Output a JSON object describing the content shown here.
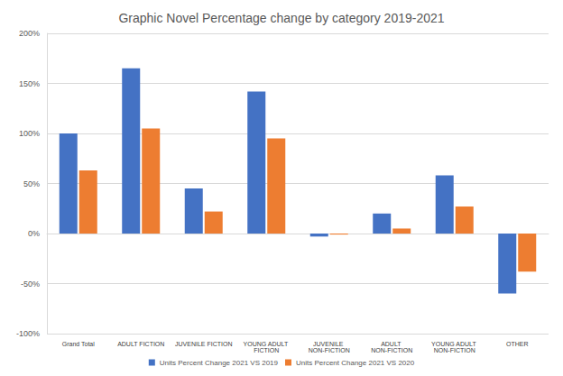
{
  "chart_data": {
    "type": "bar",
    "title": "Graphic Novel Percentage change by category 2019-2021",
    "categories": [
      "Grand Total",
      "ADULT FICTION",
      "JUVENILE FICTION",
      "YOUNG ADULT FICTION",
      "JUVENILE NON-FICTION",
      "ADULT NON-FICTION",
      "YOUNG ADULT NON-FICTION",
      "OTHER"
    ],
    "series": [
      {
        "name": "Units Percent Change 2021 VS 2019",
        "color": "#4472c4",
        "values": [
          100,
          165,
          45,
          142,
          -3,
          20,
          58,
          -60
        ]
      },
      {
        "name": "Units Percent Change 2021 VS 2020",
        "color": "#ed7d31",
        "values": [
          63,
          105,
          22,
          95,
          -1,
          5,
          27,
          -38
        ]
      }
    ],
    "ylim": [
      -100,
      200
    ],
    "yticks": [
      {
        "value": -100,
        "label": "-100%"
      },
      {
        "value": -50,
        "label": "-50%"
      },
      {
        "value": 0,
        "label": "0%"
      },
      {
        "value": 50,
        "label": "50%"
      },
      {
        "value": 100,
        "label": "100%"
      },
      {
        "value": 150,
        "label": "150%"
      },
      {
        "value": 200,
        "label": "200%"
      }
    ],
    "grid": true,
    "legend": "bottom"
  }
}
